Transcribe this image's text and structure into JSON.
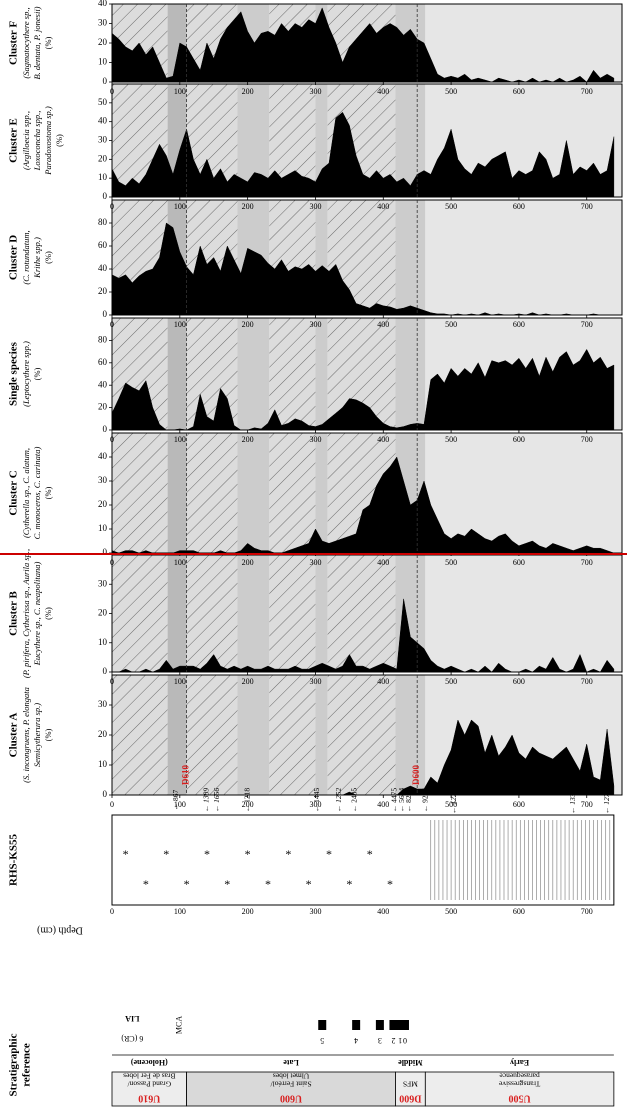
{
  "colors": {
    "red_accent": "#d92020",
    "red_line": "#cc0000",
    "fill": "#000000",
    "band_dark": "#b9b9b9",
    "band_mid": "#cccccc",
    "band_light": "#e6e6e6"
  },
  "strat": {
    "title_line1": "Stratigraphic",
    "title_line2": "reference",
    "units": [
      {
        "code": "U610",
        "desc1": "Grand Passon/",
        "desc2": "Bras de Fer lobes"
      },
      {
        "code": "U600",
        "desc1": "Saint Ferréol/",
        "desc2": "Ulmet lobes"
      },
      {
        "code": "D600",
        "desc1": "MFS",
        "desc2": ""
      },
      {
        "code": "U500",
        "desc1": "Transgressive",
        "desc2": "parasequence"
      }
    ],
    "periods": [
      "(Holocene)",
      "Late",
      "Middle",
      "Early"
    ],
    "lia_label": "LIA",
    "cr_label": "6 (CR)",
    "mca_label": "MCA",
    "lobe_numbers": [
      "5",
      "4",
      "3",
      "2",
      "1",
      "0"
    ]
  },
  "core": {
    "title": "RHS-KS55",
    "depth_label": "Depth (cm)",
    "depth_ticks": [
      "0",
      "100",
      "200",
      "300",
      "400",
      "500",
      "600",
      "700"
    ],
    "dates": [
      {
        "depth": 95,
        "label": "867",
        "italic": false
      },
      {
        "depth": 140,
        "label": "1389",
        "italic": true
      },
      {
        "depth": 155,
        "label": "1656",
        "italic": true
      },
      {
        "depth": 200,
        "label": "1218",
        "italic": false
      },
      {
        "depth": 303,
        "label": "1445",
        "italic": false
      },
      {
        "depth": 335,
        "label": "1252",
        "italic": true
      },
      {
        "depth": 358,
        "label": "2485",
        "italic": false
      },
      {
        "depth": 417,
        "label": "4475",
        "italic": false
      },
      {
        "depth": 428,
        "label": "5624",
        "italic": false
      },
      {
        "depth": 438,
        "label": "8283",
        "italic": false
      },
      {
        "depth": 463,
        "label": "9204",
        "italic": false
      },
      {
        "depth": 505,
        "label": "12263",
        "italic": true
      },
      {
        "depth": 680,
        "label": "13324",
        "italic": true
      },
      {
        "depth": 730,
        "label": "12757",
        "italic": true
      }
    ],
    "surfaces": [
      {
        "depth": 110,
        "label": "D610"
      },
      {
        "depth": 450,
        "label": "D600"
      }
    ]
  },
  "chart_data": [
    {
      "type": "area",
      "id": "cluster-a",
      "title": "Cluster A",
      "subtitle": [
        "(S. incongruens, P. elongata",
        "Semicytherura sp.)",
        "(%)"
      ],
      "ylim": [
        0,
        40
      ],
      "yticks": [
        0,
        10,
        20,
        30
      ],
      "x": [
        0,
        10,
        20,
        30,
        40,
        50,
        60,
        70,
        80,
        90,
        100,
        110,
        120,
        130,
        140,
        150,
        160,
        170,
        180,
        190,
        200,
        210,
        220,
        230,
        240,
        250,
        260,
        270,
        280,
        290,
        300,
        310,
        320,
        330,
        340,
        350,
        360,
        370,
        380,
        390,
        400,
        410,
        420,
        430,
        440,
        450,
        460,
        470,
        480,
        490,
        500,
        510,
        520,
        530,
        540,
        550,
        560,
        570,
        580,
        590,
        600,
        610,
        620,
        630,
        640,
        650,
        660,
        670,
        680,
        690,
        700,
        710,
        720,
        730,
        740
      ],
      "y": [
        0,
        0,
        0,
        0,
        0,
        0,
        0,
        0,
        0,
        0,
        0,
        0,
        0,
        0,
        0,
        0,
        0,
        0,
        0,
        0,
        0,
        0,
        0,
        0,
        0,
        0,
        0,
        0,
        0,
        0,
        0,
        0,
        0,
        0,
        0,
        1,
        0,
        0,
        0,
        0,
        0,
        0,
        0,
        2,
        3,
        2,
        2,
        6,
        4,
        10,
        15,
        25,
        20,
        25,
        23,
        14,
        20,
        13,
        16,
        20,
        14,
        12,
        16,
        14,
        13,
        12,
        14,
        16,
        12,
        8,
        17,
        6,
        5,
        22,
        3
      ]
    },
    {
      "type": "area",
      "id": "cluster-b",
      "title": "Cluster B",
      "subtitle": [
        "(P. pirifera, Cytherissa sp., Aurila sp.,",
        "Eucythere sp., C. neapolitana)",
        "(%)"
      ],
      "ylim": [
        0,
        40
      ],
      "yticks": [
        0,
        10,
        20,
        30
      ],
      "x": [
        0,
        10,
        20,
        30,
        40,
        50,
        60,
        70,
        80,
        90,
        100,
        110,
        120,
        130,
        140,
        150,
        160,
        170,
        180,
        190,
        200,
        210,
        220,
        230,
        240,
        250,
        260,
        270,
        280,
        290,
        300,
        310,
        320,
        330,
        340,
        350,
        360,
        370,
        380,
        390,
        400,
        410,
        420,
        430,
        440,
        450,
        460,
        470,
        480,
        490,
        500,
        510,
        520,
        530,
        540,
        550,
        560,
        570,
        580,
        590,
        600,
        610,
        620,
        630,
        640,
        650,
        660,
        670,
        680,
        690,
        700,
        710,
        720,
        730,
        740
      ],
      "y": [
        0,
        0,
        1,
        0,
        0,
        1,
        0,
        1,
        4,
        1,
        2,
        2,
        2,
        1,
        3,
        6,
        2,
        1,
        2,
        1,
        2,
        1,
        1,
        2,
        1,
        1,
        1,
        2,
        1,
        1,
        2,
        3,
        2,
        1,
        2,
        6,
        2,
        2,
        1,
        2,
        3,
        2,
        1,
        25,
        12,
        10,
        8,
        4,
        2,
        1,
        2,
        1,
        0,
        1,
        0,
        2,
        0,
        3,
        1,
        0,
        0,
        1,
        0,
        2,
        1,
        5,
        1,
        0,
        1,
        6,
        0,
        1,
        0,
        4,
        1
      ]
    },
    {
      "type": "area",
      "id": "cluster-c",
      "title": "Cluster C",
      "subtitle": [
        "(Cytherella sp., C. alatum,",
        "C. monoceros, C. carinata)",
        "(%)"
      ],
      "ylim": [
        0,
        50
      ],
      "yticks": [
        0,
        10,
        20,
        30,
        40
      ],
      "x": [
        0,
        10,
        20,
        30,
        40,
        50,
        60,
        70,
        80,
        90,
        100,
        110,
        120,
        130,
        140,
        150,
        160,
        170,
        180,
        190,
        200,
        210,
        220,
        230,
        240,
        250,
        260,
        270,
        280,
        290,
        300,
        310,
        320,
        330,
        340,
        350,
        360,
        370,
        380,
        390,
        400,
        410,
        420,
        430,
        440,
        450,
        460,
        470,
        480,
        490,
        500,
        510,
        520,
        530,
        540,
        550,
        560,
        570,
        580,
        590,
        600,
        610,
        620,
        630,
        640,
        650,
        660,
        670,
        680,
        690,
        700,
        710,
        720,
        730,
        740
      ],
      "y": [
        1,
        0,
        1,
        1,
        0,
        1,
        0,
        0,
        0,
        0,
        1,
        1,
        1,
        0,
        0,
        0,
        1,
        0,
        0,
        1,
        4,
        2,
        1,
        1,
        0,
        0,
        1,
        2,
        3,
        4,
        10,
        5,
        4,
        5,
        6,
        7,
        8,
        18,
        20,
        28,
        33,
        36,
        40,
        30,
        20,
        22,
        30,
        20,
        14,
        8,
        6,
        8,
        7,
        10,
        8,
        6,
        5,
        7,
        8,
        5,
        3,
        4,
        5,
        3,
        2,
        4,
        3,
        2,
        1,
        2,
        3,
        2,
        2,
        1,
        0
      ]
    },
    {
      "type": "area",
      "id": "single-species",
      "title": "Single species",
      "subtitle": [
        "(Leptocythere spp.)",
        "(%)"
      ],
      "ylim": [
        0,
        100
      ],
      "yticks": [
        0,
        20,
        40,
        60,
        80
      ],
      "x": [
        0,
        10,
        20,
        30,
        40,
        50,
        60,
        70,
        80,
        90,
        100,
        110,
        120,
        130,
        140,
        150,
        160,
        170,
        180,
        190,
        200,
        210,
        220,
        230,
        240,
        250,
        260,
        270,
        280,
        290,
        300,
        310,
        320,
        330,
        340,
        350,
        360,
        370,
        380,
        390,
        400,
        410,
        420,
        430,
        440,
        450,
        460,
        470,
        480,
        490,
        500,
        510,
        520,
        530,
        540,
        550,
        560,
        570,
        580,
        590,
        600,
        610,
        620,
        630,
        640,
        650,
        660,
        670,
        680,
        690,
        700,
        710,
        720,
        730,
        740
      ],
      "y": [
        15,
        28,
        42,
        38,
        35,
        44,
        20,
        5,
        0,
        0,
        1,
        0,
        3,
        32,
        12,
        8,
        37,
        28,
        4,
        0,
        0,
        2,
        1,
        6,
        18,
        4,
        6,
        10,
        8,
        4,
        3,
        5,
        10,
        15,
        20,
        28,
        27,
        24,
        20,
        12,
        6,
        3,
        2,
        3,
        5,
        6,
        5,
        45,
        50,
        42,
        55,
        48,
        55,
        50,
        60,
        47,
        62,
        60,
        62,
        58,
        64,
        55,
        64,
        48,
        65,
        52,
        65,
        70,
        58,
        62,
        72,
        60,
        65,
        55,
        58
      ]
    },
    {
      "type": "area",
      "id": "cluster-d",
      "title": "Cluster D",
      "subtitle": [
        "(C. rotundatum,",
        "Krithe spp.)",
        "(%)"
      ],
      "ylim": [
        0,
        100
      ],
      "yticks": [
        0,
        20,
        40,
        60,
        80
      ],
      "x": [
        0,
        10,
        20,
        30,
        40,
        50,
        60,
        70,
        80,
        90,
        100,
        110,
        120,
        130,
        140,
        150,
        160,
        170,
        180,
        190,
        200,
        210,
        220,
        230,
        240,
        250,
        260,
        270,
        280,
        290,
        300,
        310,
        320,
        330,
        340,
        350,
        360,
        370,
        380,
        390,
        400,
        410,
        420,
        430,
        440,
        450,
        460,
        470,
        480,
        490,
        500,
        510,
        520,
        530,
        540,
        550,
        560,
        570,
        580,
        590,
        600,
        610,
        620,
        630,
        640,
        650,
        660,
        670,
        680,
        690,
        700,
        710,
        720,
        730,
        740
      ],
      "y": [
        35,
        32,
        35,
        28,
        34,
        38,
        40,
        50,
        80,
        76,
        55,
        42,
        35,
        60,
        44,
        50,
        38,
        60,
        48,
        36,
        58,
        55,
        52,
        45,
        40,
        48,
        38,
        42,
        40,
        44,
        38,
        43,
        38,
        44,
        30,
        22,
        10,
        8,
        6,
        10,
        8,
        7,
        5,
        6,
        8,
        6,
        4,
        2,
        1,
        1,
        0,
        1,
        0,
        1,
        0,
        2,
        0,
        1,
        0,
        0,
        1,
        0,
        2,
        0,
        1,
        0,
        0,
        1,
        0,
        0,
        0,
        1,
        0,
        0,
        0
      ]
    },
    {
      "type": "area",
      "id": "cluster-e",
      "title": "Cluster E",
      "subtitle": [
        "(Argilloecia spp.,",
        "Loxoconcha spp.,",
        "Paradoxostoma sp.)",
        "(%)"
      ],
      "ylim": [
        0,
        60
      ],
      "yticks": [
        0,
        10,
        20,
        30,
        40,
        50
      ],
      "x": [
        0,
        10,
        20,
        30,
        40,
        50,
        60,
        70,
        80,
        90,
        100,
        110,
        120,
        130,
        140,
        150,
        160,
        170,
        180,
        190,
        200,
        210,
        220,
        230,
        240,
        250,
        260,
        270,
        280,
        290,
        300,
        310,
        320,
        330,
        340,
        350,
        360,
        370,
        380,
        390,
        400,
        410,
        420,
        430,
        440,
        450,
        460,
        470,
        480,
        490,
        500,
        510,
        520,
        530,
        540,
        550,
        560,
        570,
        580,
        590,
        600,
        610,
        620,
        630,
        640,
        650,
        660,
        670,
        680,
        690,
        700,
        710,
        720,
        730,
        740
      ],
      "y": [
        15,
        8,
        6,
        10,
        7,
        12,
        20,
        28,
        22,
        12,
        25,
        36,
        20,
        12,
        20,
        10,
        15,
        8,
        12,
        10,
        8,
        13,
        12,
        10,
        14,
        10,
        12,
        14,
        11,
        10,
        8,
        15,
        18,
        42,
        45,
        38,
        22,
        12,
        10,
        14,
        10,
        12,
        8,
        10,
        6,
        12,
        14,
        12,
        20,
        26,
        36,
        20,
        15,
        12,
        18,
        16,
        20,
        22,
        24,
        10,
        14,
        12,
        14,
        24,
        20,
        10,
        12,
        30,
        12,
        16,
        14,
        18,
        12,
        14,
        32
      ]
    },
    {
      "type": "area",
      "id": "cluster-f",
      "title": "Cluster F",
      "subtitle": [
        "(Sagmatocythere sp.,",
        "B. dentata, P. jonesii)",
        "(%)"
      ],
      "ylim": [
        0,
        40
      ],
      "yticks": [
        0,
        10,
        20,
        30,
        40
      ],
      "x": [
        0,
        10,
        20,
        30,
        40,
        50,
        60,
        70,
        80,
        90,
        100,
        110,
        120,
        130,
        140,
        150,
        160,
        170,
        180,
        190,
        200,
        210,
        220,
        230,
        240,
        250,
        260,
        270,
        280,
        290,
        300,
        310,
        320,
        330,
        340,
        350,
        360,
        370,
        380,
        390,
        400,
        410,
        420,
        430,
        440,
        450,
        460,
        470,
        480,
        490,
        500,
        510,
        520,
        530,
        540,
        550,
        560,
        570,
        580,
        590,
        600,
        610,
        620,
        630,
        640,
        650,
        660,
        670,
        680,
        690,
        700,
        710,
        720,
        730,
        740
      ],
      "y": [
        25,
        22,
        18,
        16,
        20,
        14,
        18,
        10,
        2,
        3,
        20,
        18,
        12,
        6,
        20,
        12,
        22,
        28,
        32,
        36,
        26,
        20,
        25,
        26,
        24,
        30,
        26,
        30,
        28,
        32,
        30,
        38,
        28,
        20,
        10,
        18,
        22,
        26,
        30,
        25,
        28,
        30,
        28,
        24,
        27,
        22,
        20,
        12,
        4,
        2,
        3,
        2,
        4,
        1,
        2,
        1,
        0,
        2,
        1,
        0,
        1,
        0,
        2,
        0,
        1,
        0,
        2,
        0,
        1,
        3,
        0,
        6,
        2,
        4,
        2
      ]
    }
  ]
}
